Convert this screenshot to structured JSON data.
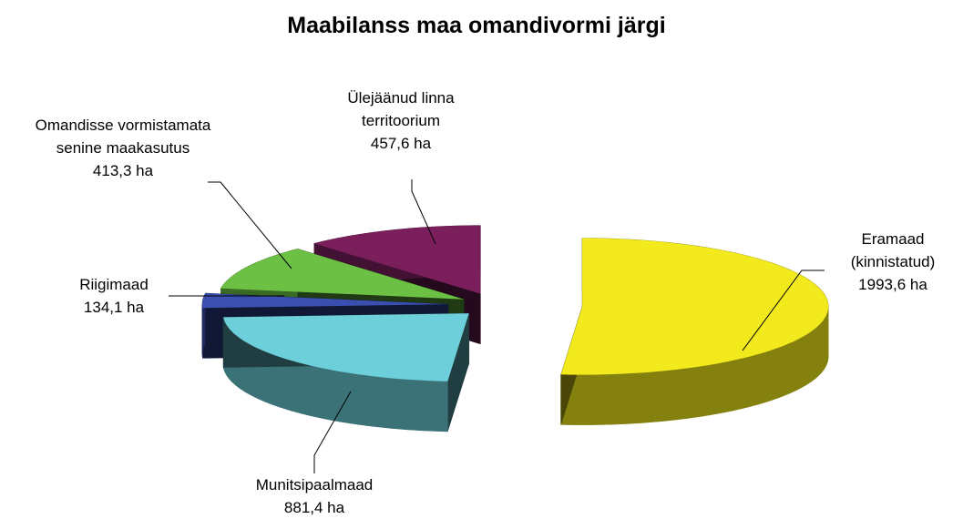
{
  "chart_data": {
    "type": "pie",
    "title": "Maabilanss maa omandivormi järgi",
    "categories": [
      "Eramaad (kinnistatud)",
      "Munitsipaalmaad",
      "Riigimaad",
      "Omandisse vormistamata senine maakasutus",
      "Ülejäänud linna territoorium"
    ],
    "values": [
      1993.6,
      881.4,
      134.1,
      413.3,
      457.6
    ],
    "value_labels": [
      "1993,6 ha",
      "881,4 ha",
      "134,1 ha",
      "413,3 ha",
      "457,6 ha"
    ],
    "colors": [
      "#f2ea1c",
      "#6ccfd9",
      "#3a4fb0",
      "#6cc044",
      "#7a1f5c"
    ]
  }
}
